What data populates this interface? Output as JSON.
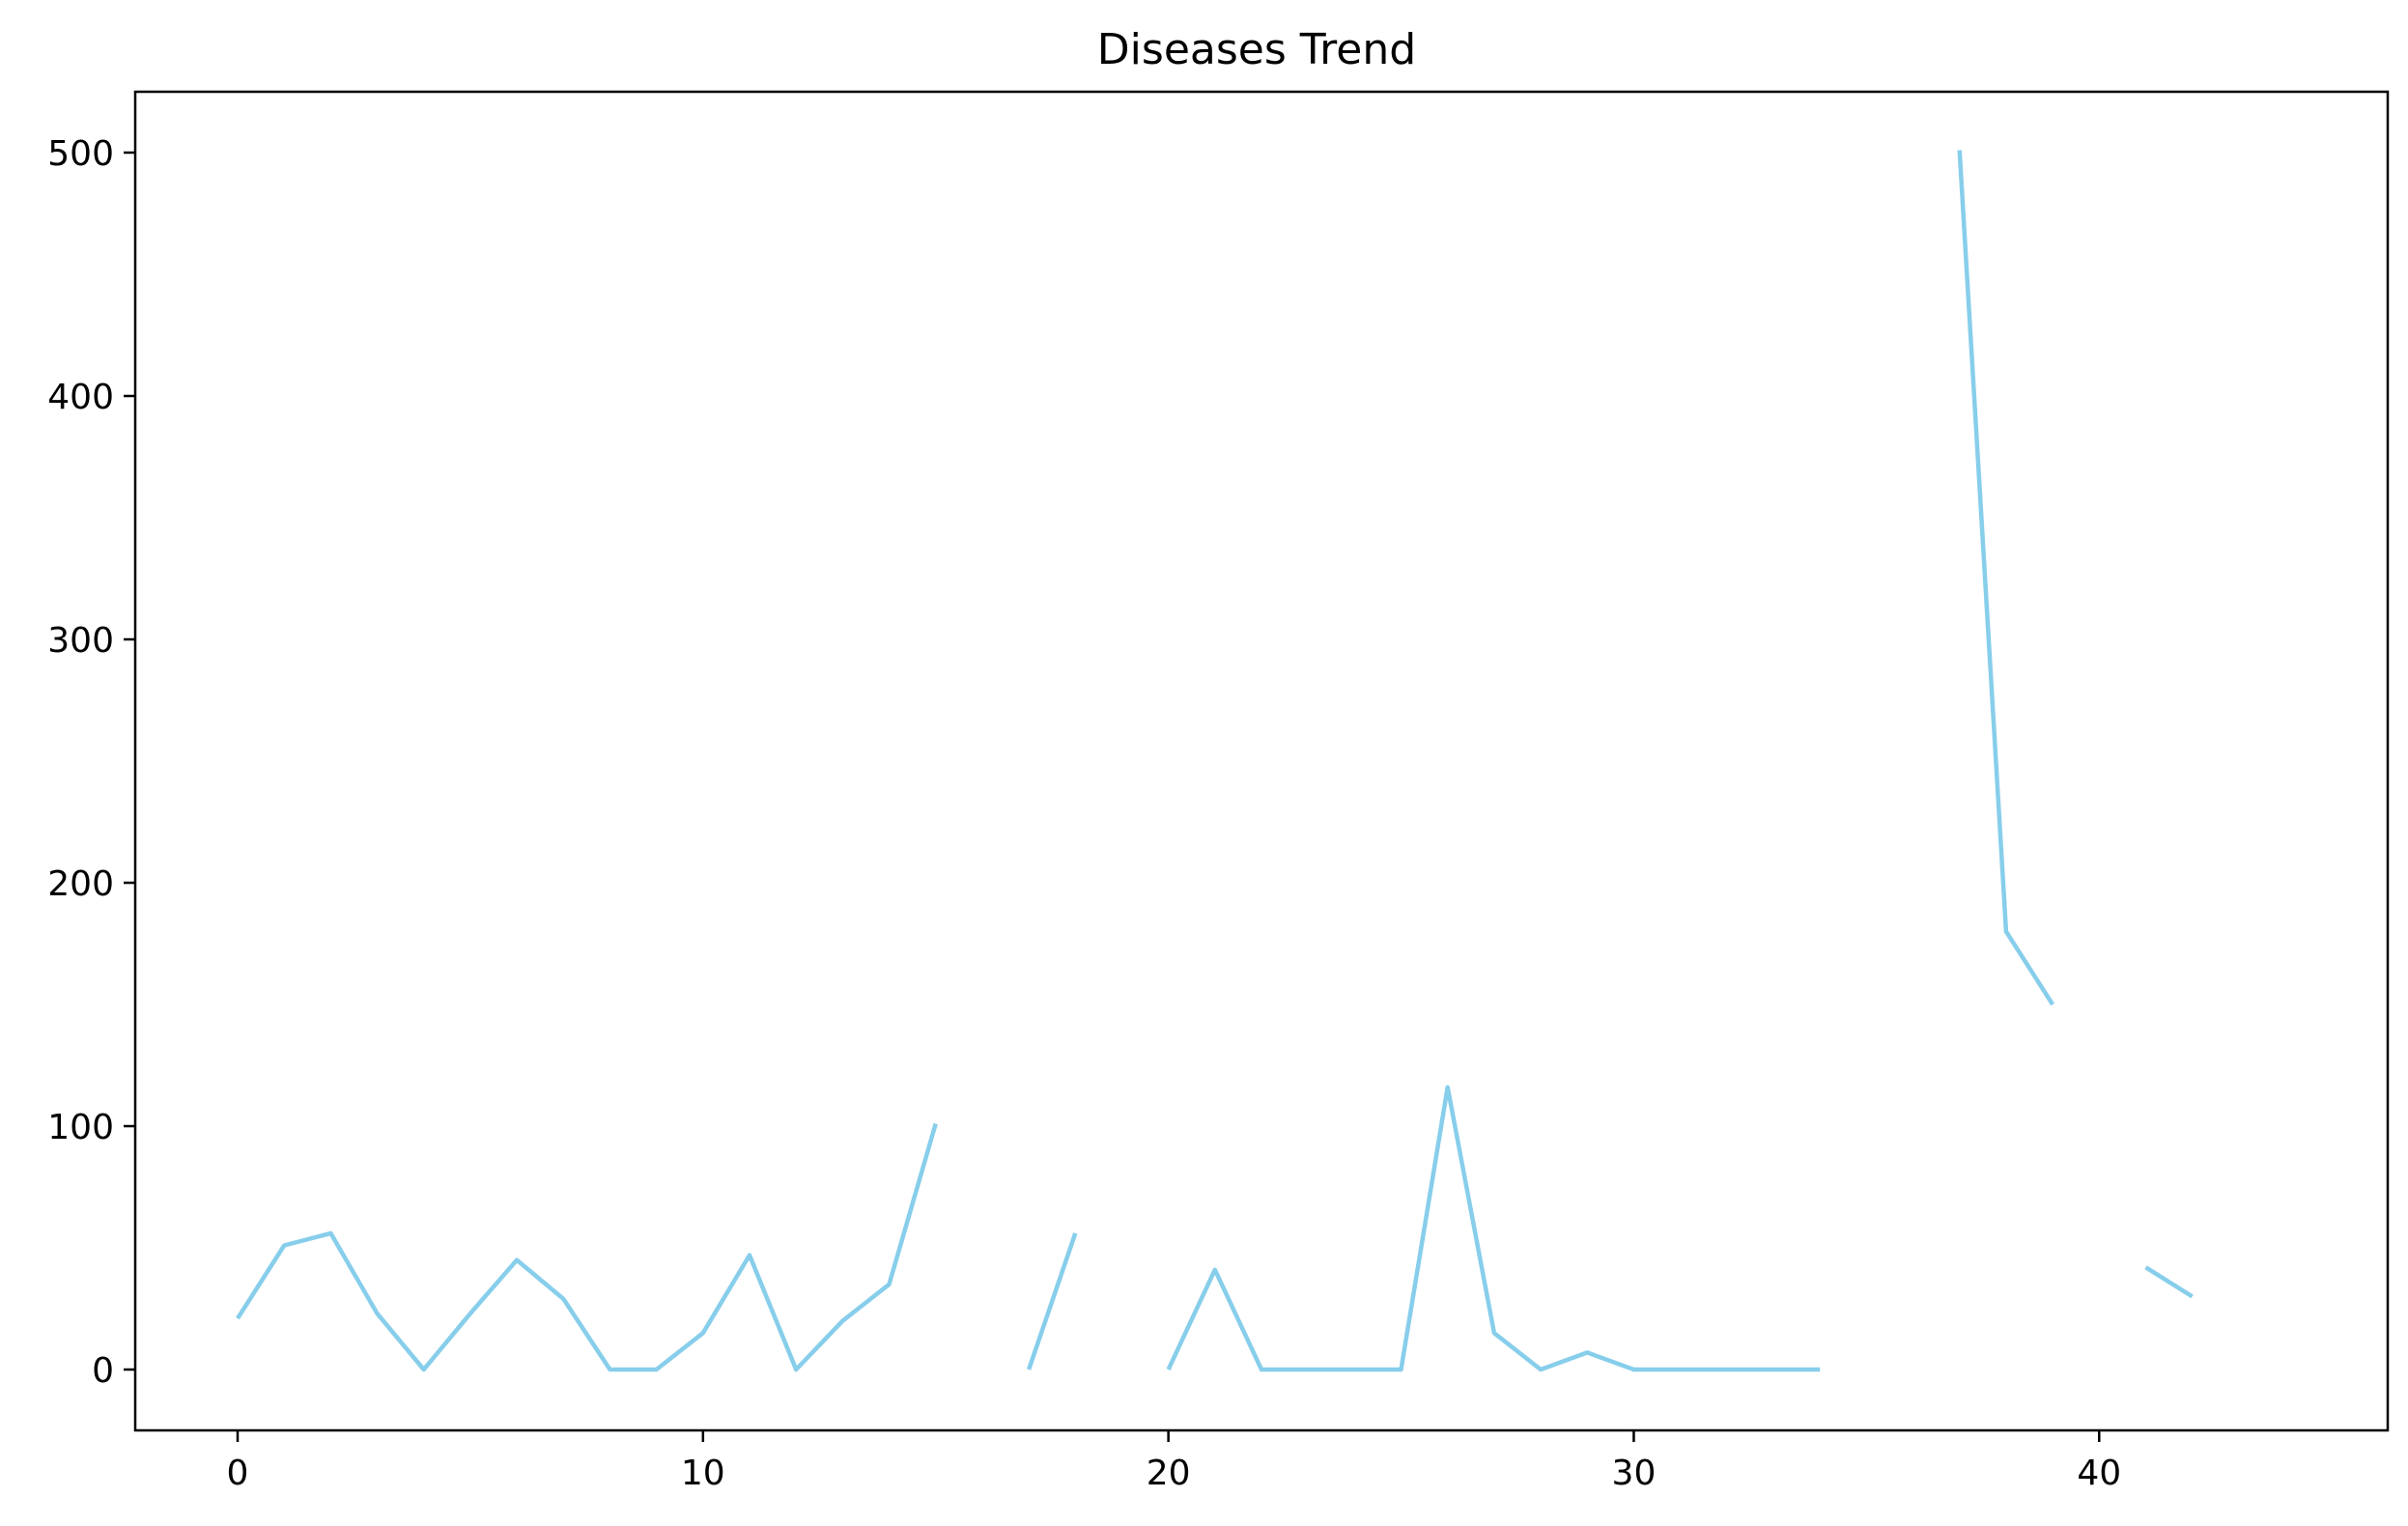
{
  "chart_data": {
    "type": "line",
    "title": "Diseases Trend",
    "xlabel": "",
    "ylabel": "",
    "xlim": [
      -2.2,
      46.2
    ],
    "ylim": [
      -25,
      525
    ],
    "xticks": [
      0,
      10,
      20,
      30,
      40
    ],
    "yticks": [
      0,
      100,
      200,
      300,
      400,
      500
    ],
    "grid": false,
    "legend": "none",
    "colors": {
      "line": "#87ceeb",
      "axes": "#000000",
      "background": "#ffffff"
    },
    "series": [
      {
        "x": [
          0,
          1,
          2,
          3,
          4,
          5,
          6,
          7,
          8,
          9,
          10,
          11,
          12,
          13,
          14,
          15,
          16,
          17,
          18,
          19,
          20,
          21,
          22,
          23,
          24,
          25,
          26,
          27,
          28,
          29,
          30,
          31,
          32,
          33,
          34,
          35,
          36,
          37,
          38,
          39,
          40,
          41,
          42
        ],
        "values": [
          21,
          51,
          56,
          23,
          0,
          23,
          45,
          29,
          0,
          0,
          15,
          47,
          0,
          20,
          35,
          101,
          null,
          0,
          56,
          null,
          0,
          41,
          0,
          0,
          0,
          0,
          116,
          15,
          0,
          7,
          0,
          0,
          0,
          0,
          0,
          null,
          null,
          501,
          180,
          150,
          null,
          42,
          30
        ]
      }
    ]
  }
}
